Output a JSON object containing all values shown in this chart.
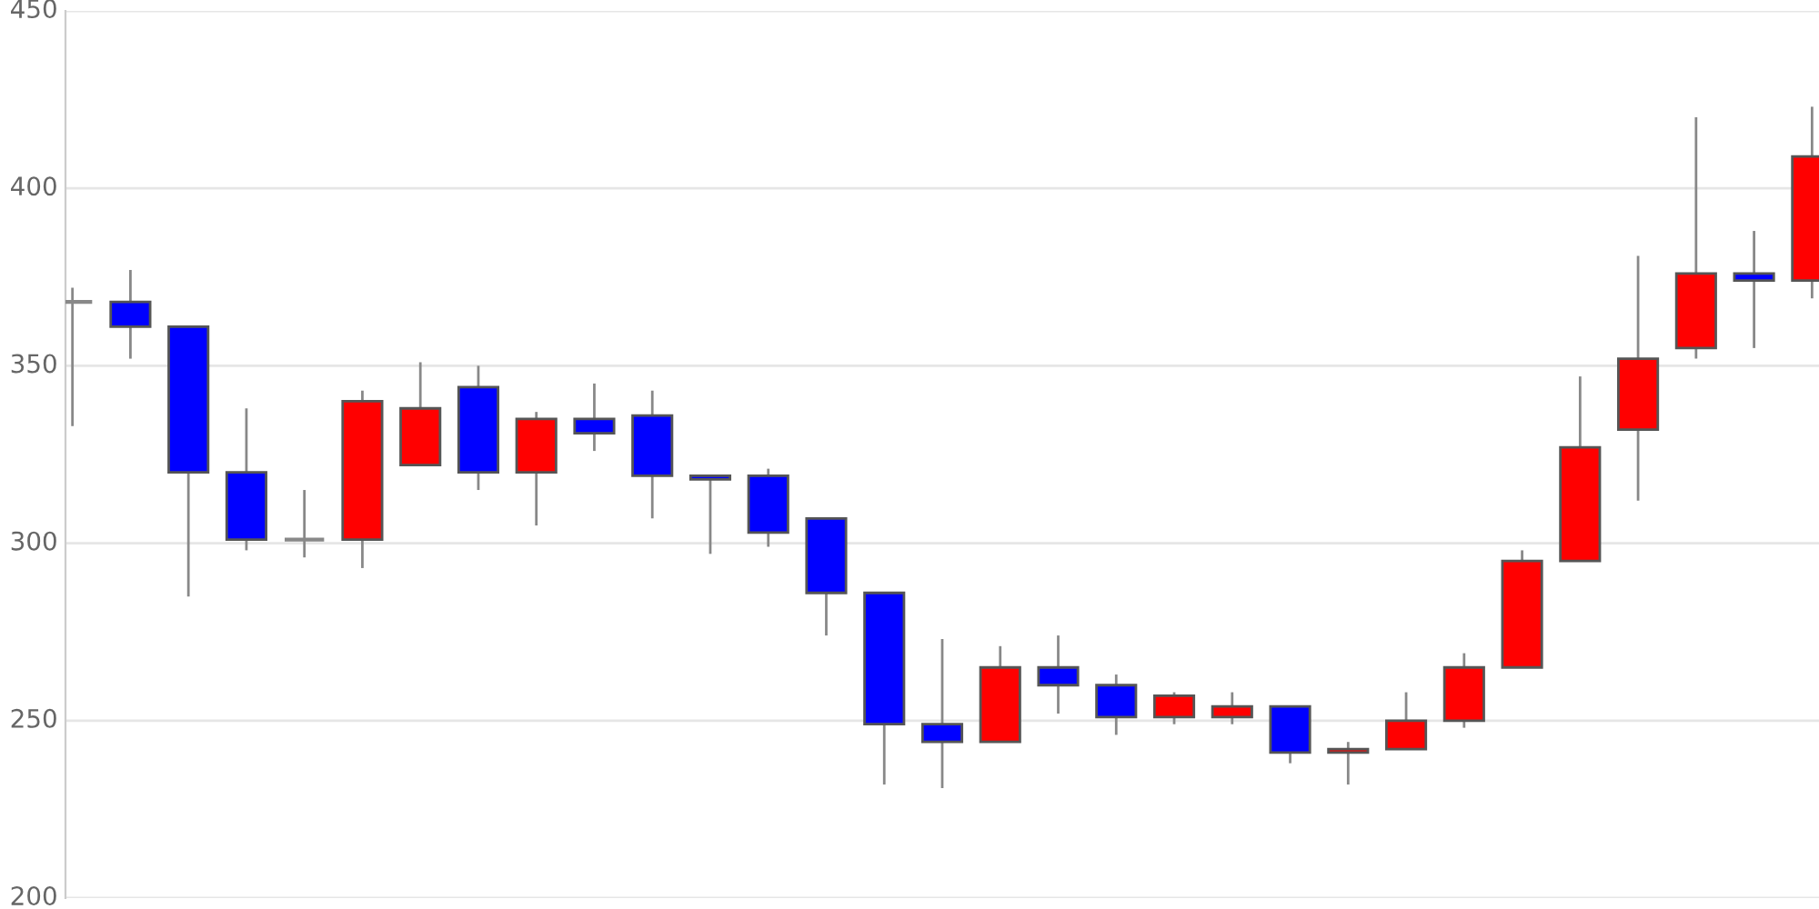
{
  "chart_data": {
    "type": "candlestick",
    "categories": [
      null,
      null,
      null,
      null,
      null,
      null,
      null,
      null,
      null,
      null,
      null,
      null,
      null,
      null,
      null,
      null,
      null,
      null,
      null,
      null,
      null,
      null,
      null,
      null,
      null,
      null,
      null,
      null,
      null,
      null,
      null
    ],
    "ohlc": [
      [
        368,
        372,
        333,
        368
      ],
      [
        368,
        377,
        352,
        361
      ],
      [
        361,
        361,
        285,
        320
      ],
      [
        320,
        338,
        298,
        301
      ],
      [
        301,
        315,
        296,
        301
      ],
      [
        301,
        343,
        293,
        340
      ],
      [
        322,
        351,
        322,
        338
      ],
      [
        344,
        350,
        315,
        320
      ],
      [
        320,
        337,
        305,
        335
      ],
      [
        335,
        345,
        326,
        331
      ],
      [
        336,
        343,
        307,
        319
      ],
      [
        319,
        319,
        297,
        318
      ],
      [
        319,
        321,
        299,
        303
      ],
      [
        307,
        307,
        274,
        286
      ],
      [
        286,
        286,
        232,
        249
      ],
      [
        249,
        273,
        231,
        244
      ],
      [
        244,
        271,
        244,
        265
      ],
      [
        265,
        274,
        252,
        260
      ],
      [
        260,
        263,
        246,
        251
      ],
      [
        251,
        258,
        249,
        257
      ],
      [
        251,
        258,
        249,
        254
      ],
      [
        254,
        254,
        238,
        241
      ],
      [
        241,
        244,
        232,
        242
      ],
      [
        242,
        258,
        242,
        250
      ],
      [
        250,
        269,
        248,
        265
      ],
      [
        265,
        298,
        265,
        295
      ],
      [
        295,
        347,
        295,
        327
      ],
      [
        332,
        381,
        312,
        352
      ],
      [
        355,
        420,
        352,
        376
      ],
      [
        376,
        388,
        355,
        374
      ],
      [
        374,
        423,
        369,
        409
      ]
    ],
    "colors": [
      "#888888",
      "#0000ff",
      "#0000ff",
      "#0000ff",
      "#888888",
      "#ff0000",
      "#ff0000",
      "#0000ff",
      "#ff0000",
      "#0000ff",
      "#0000ff",
      "#0000ff",
      "#0000ff",
      "#0000ff",
      "#0000ff",
      "#0000ff",
      "#ff0000",
      "#0000ff",
      "#0000ff",
      "#ff0000",
      "#ff0000",
      "#0000ff",
      "#ff0000",
      "#ff0000",
      "#ff0000",
      "#ff0000",
      "#ff0000",
      "#ff0000",
      "#ff0000",
      "#0000ff",
      "#ff0000"
    ],
    "ylim": [
      200,
      450
    ],
    "yticks": [
      200,
      250,
      300,
      350,
      400,
      450
    ],
    "grid": "y",
    "tick_labels": "y"
  }
}
